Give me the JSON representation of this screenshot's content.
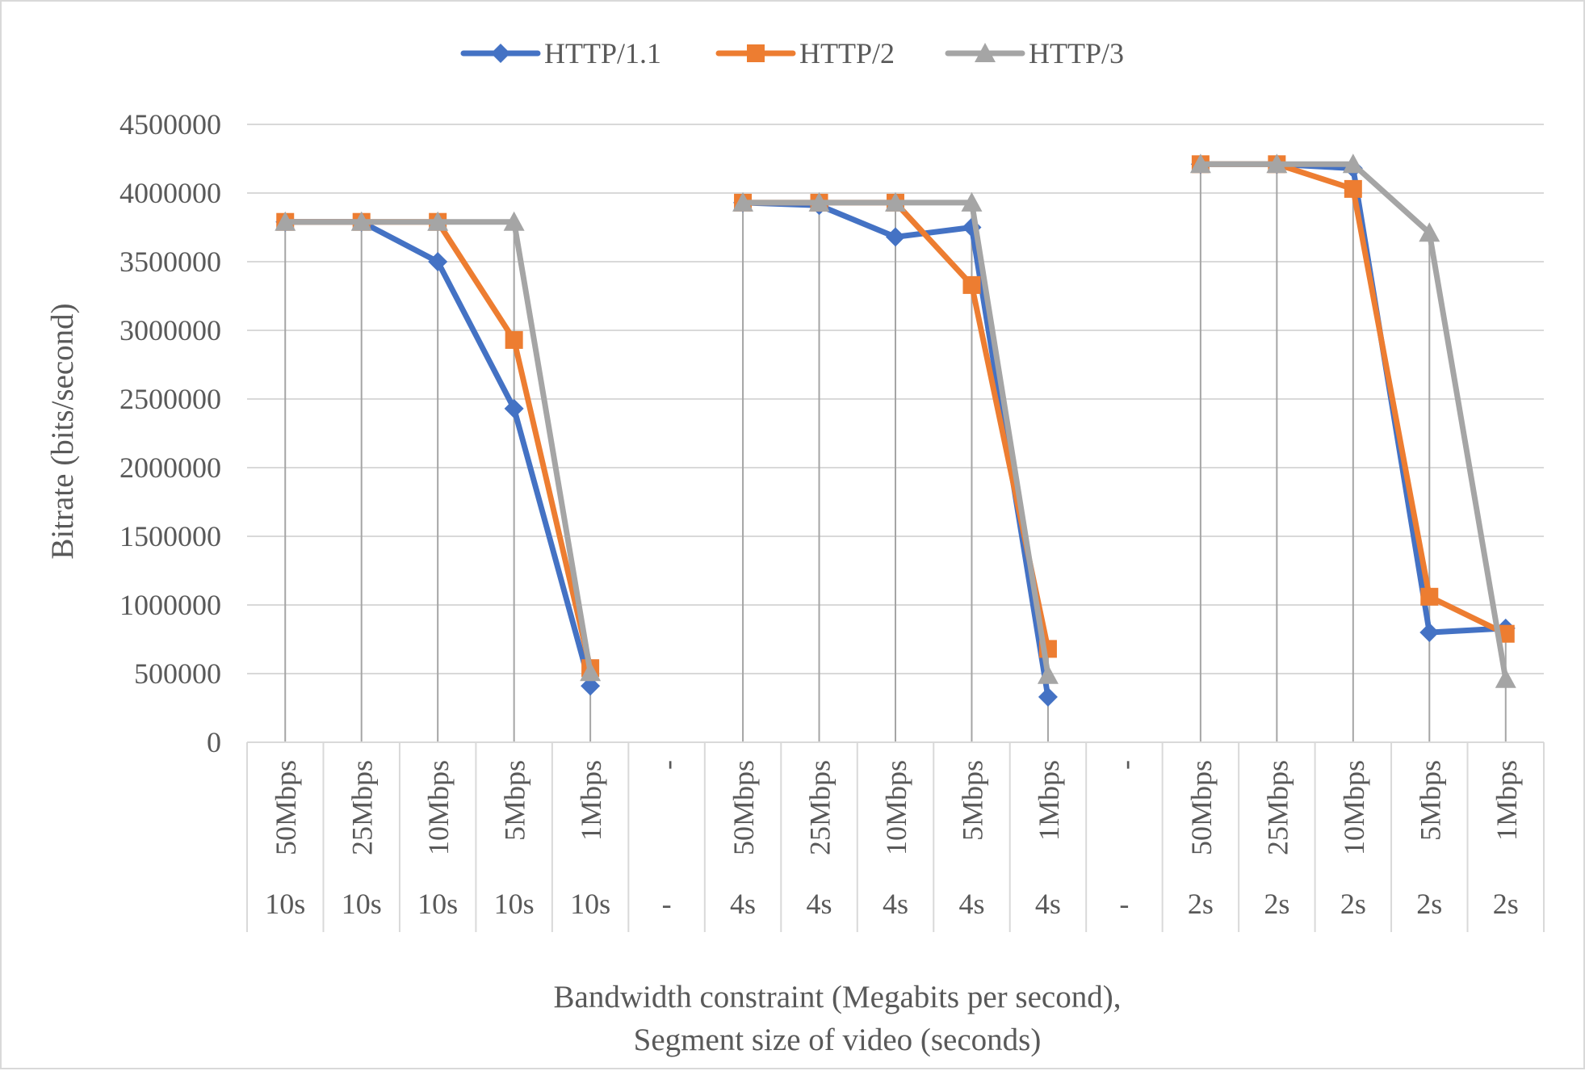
{
  "chart_data": {
    "type": "line",
    "title": "",
    "ylabel": "Bitrate (bits/second)",
    "xlabel_lines": [
      "Bandwidth constraint (Megabits per second),",
      "Segment size of video (seconds)"
    ],
    "ylim": [
      0,
      4500000
    ],
    "y_ticks": [
      0,
      500000,
      1000000,
      1500000,
      2000000,
      2500000,
      3000000,
      3500000,
      4000000,
      4500000
    ],
    "y_tick_labels": [
      "0",
      "500000",
      "1000000",
      "1500000",
      "2000000",
      "2500000",
      "3000000",
      "3500000",
      "4000000",
      "4500000"
    ],
    "grid": true,
    "legend_position": "top",
    "categories_level1": [
      "50Mbps",
      "25Mbps",
      "10Mbps",
      "5Mbps",
      "1Mbps",
      "-",
      "50Mbps",
      "25Mbps",
      "10Mbps",
      "5Mbps",
      "1Mbps",
      "-",
      "50Mbps",
      "25Mbps",
      "10Mbps",
      "5Mbps",
      "1Mbps"
    ],
    "categories_level2": [
      "10s",
      "10s",
      "10s",
      "10s",
      "10s",
      "-",
      "4s",
      "4s",
      "4s",
      "4s",
      "4s",
      "-",
      "2s",
      "2s",
      "2s",
      "2s",
      "2s"
    ],
    "series": [
      {
        "name": "HTTP/1.1",
        "color": "#4472C4",
        "marker": "diamond",
        "values": [
          3790000,
          3790000,
          3500000,
          2430000,
          410000,
          null,
          3930000,
          3910000,
          3680000,
          3750000,
          330000,
          null,
          4210000,
          4210000,
          4180000,
          800000,
          830000
        ]
      },
      {
        "name": "HTTP/2",
        "color": "#ED7D31",
        "marker": "square",
        "values": [
          3790000,
          3790000,
          3790000,
          2930000,
          540000,
          null,
          3930000,
          3930000,
          3930000,
          3330000,
          680000,
          null,
          4210000,
          4210000,
          4030000,
          1060000,
          790000
        ]
      },
      {
        "name": "HTTP/3",
        "color": "#A5A5A5",
        "marker": "triangle",
        "values": [
          3790000,
          3790000,
          3790000,
          3790000,
          510000,
          null,
          3930000,
          3930000,
          3930000,
          3930000,
          490000,
          null,
          4210000,
          4210000,
          4210000,
          3710000,
          460000
        ]
      }
    ]
  }
}
